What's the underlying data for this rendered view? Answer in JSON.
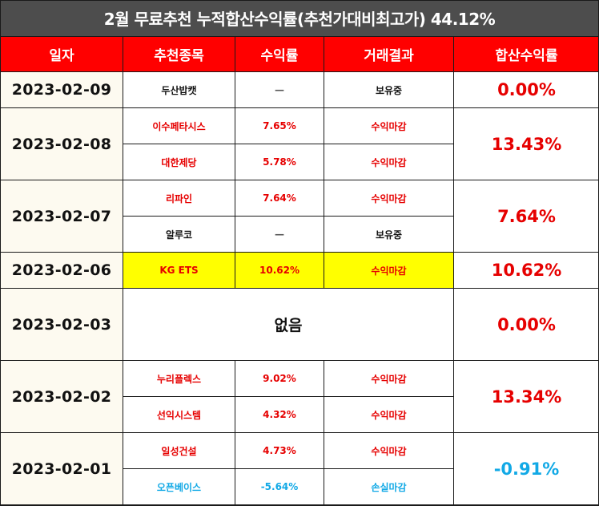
{
  "title": "2월 무료추천 누적합산수익률(추천가대비최고가) 44.12%",
  "headers": [
    "일자",
    "추천종목",
    "수익률",
    "거래결과",
    "합산수익률"
  ],
  "groups": [
    {
      "date": "2023-02-09",
      "total": "0.00%",
      "rows": [
        {
          "stock": "두산밥캣",
          "rate": "—",
          "result": "보유중"
        }
      ]
    },
    {
      "date": "2023-02-08",
      "total": "13.43%",
      "rows": [
        {
          "stock": "이수페타시스",
          "rate": "7.65%",
          "result": "수익마감"
        },
        {
          "stock": "대한제당",
          "rate": "5.78%",
          "result": "수익마감"
        }
      ]
    },
    {
      "date": "2023-02-07",
      "total": "7.64%",
      "rows": [
        {
          "stock": "리파인",
          "rate": "7.64%",
          "result": "수익마감"
        },
        {
          "stock": "알루코",
          "rate": "—",
          "result": "보유중"
        }
      ]
    },
    {
      "date": "2023-02-06",
      "total": "10.62%",
      "rows": [
        {
          "stock": "KG ETS",
          "rate": "10.62%",
          "result": "수익마감"
        }
      ]
    },
    {
      "date": "2023-02-03",
      "total": "0.00%",
      "none_text": "없음"
    },
    {
      "date": "2023-02-02",
      "total": "13.34%",
      "rows": [
        {
          "stock": "누리플렉스",
          "rate": "9.02%",
          "result": "수익마감"
        },
        {
          "stock": "선익시스템",
          "rate": "4.32%",
          "result": "수익마감"
        }
      ]
    },
    {
      "date": "2023-02-01",
      "total": "-0.91%",
      "rows": [
        {
          "stock": "일성건설",
          "rate": "4.73%",
          "result": "수익마감"
        },
        {
          "stock": "오픈베이스",
          "rate": "-5.64%",
          "result": "손실마감"
        }
      ]
    }
  ],
  "colors": {
    "header_bg": "#ff0000",
    "title_bg": "#4d4d4d",
    "profit": "#e60000",
    "loss": "#12a9e6",
    "highlight": "#ffff00",
    "date_bg": "#fdfaf0"
  }
}
